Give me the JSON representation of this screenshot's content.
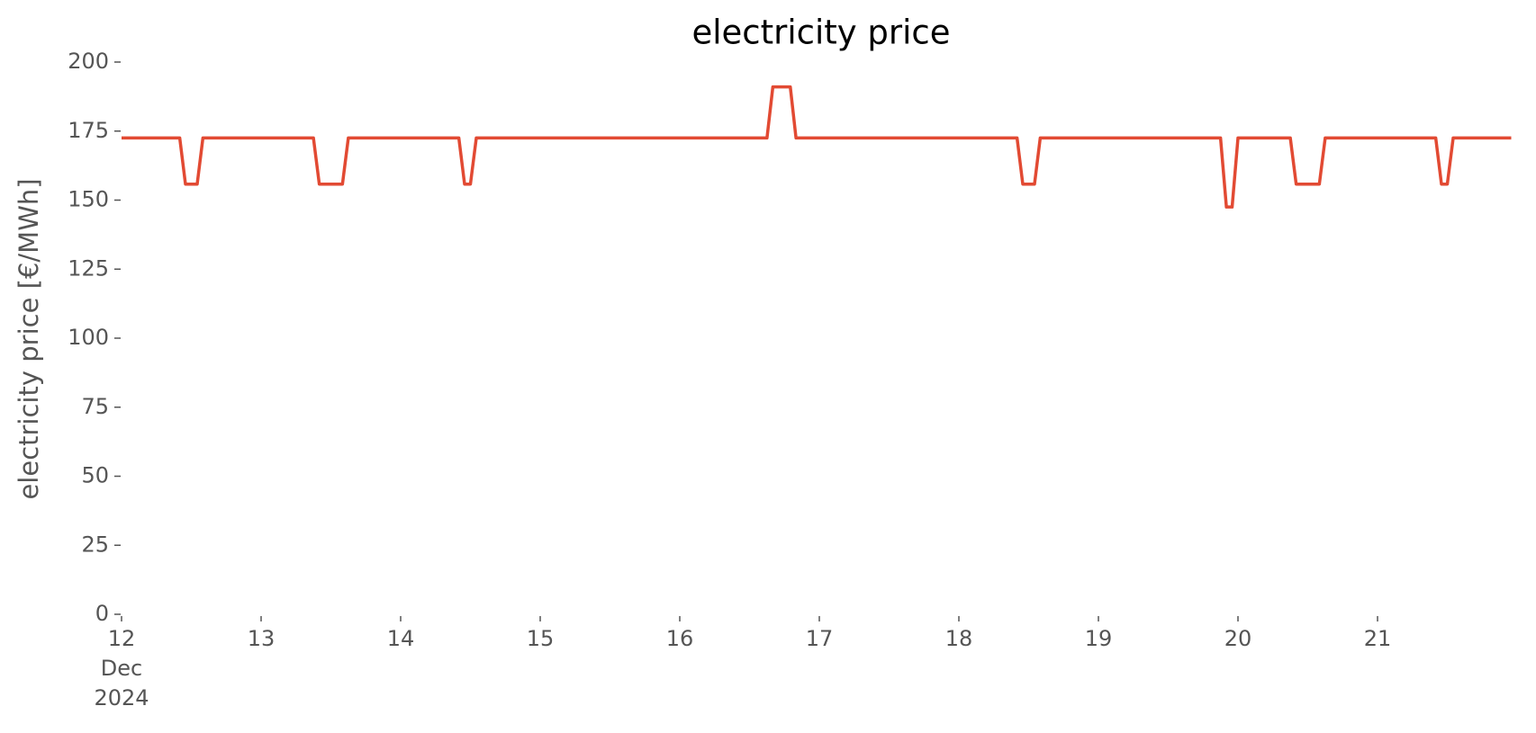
{
  "chart_data": {
    "type": "line",
    "title": "electricity price",
    "y_label": "electricity price [€/MWh]",
    "x": [
      12,
      12.417,
      12.458,
      12.542,
      12.583,
      13.375,
      13.417,
      13.583,
      13.625,
      14.417,
      14.458,
      14.5,
      14.542,
      16.625,
      16.667,
      16.792,
      16.833,
      18.417,
      18.458,
      18.542,
      18.583,
      19.875,
      19.917,
      19.958,
      20,
      20.375,
      20.417,
      20.583,
      20.625,
      21.417,
      21.458,
      21.5,
      21.542,
      21.958
    ],
    "series": [
      {
        "name": "electricity price",
        "color": "#e24a33",
        "values": [
          172.5,
          172.5,
          155.8,
          155.8,
          172.5,
          172.5,
          155.8,
          155.8,
          172.5,
          172.5,
          155.8,
          155.8,
          172.5,
          172.5,
          191,
          191,
          172.5,
          172.5,
          155.8,
          155.8,
          172.5,
          172.5,
          147.5,
          147.5,
          172.5,
          172.5,
          155.8,
          155.8,
          172.5,
          172.5,
          155.8,
          155.8,
          172.5,
          172.5
        ]
      }
    ],
    "xlim": [
      12,
      22
    ],
    "ylim": [
      0,
      200
    ],
    "xticks": [
      {
        "value": 12,
        "label": "12\nDec\n2024"
      },
      13,
      14,
      15,
      16,
      17,
      18,
      19,
      20,
      21
    ],
    "yticks": [
      0,
      25,
      50,
      75,
      100,
      125,
      150,
      175,
      200
    ],
    "grid": false
  }
}
